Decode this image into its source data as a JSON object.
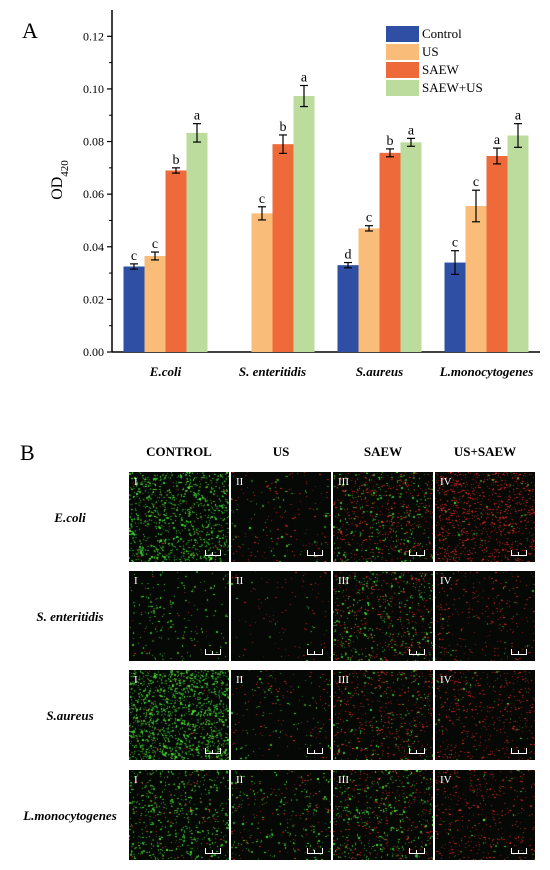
{
  "panel_a_letter": "A",
  "panel_b_letter": "B",
  "chart_data": {
    "type": "bar",
    "ylabel": "OD",
    "ylabel_subscript": "420",
    "ylim": [
      0,
      0.13
    ],
    "yticks": [
      "0.00",
      "0.02",
      "0.04",
      "0.06",
      "0.08",
      "0.10",
      "0.12"
    ],
    "categories": [
      "E.coli",
      "S. enteritidis",
      "S.aureus",
      "L.monocytogenes"
    ],
    "legend_position": "top-right",
    "grid": false,
    "series": [
      {
        "name": "Control",
        "color": "#2e4fa3",
        "values": [
          0.0325,
          null,
          0.033,
          0.034
        ],
        "errors": [
          0.001,
          null,
          0.001,
          0.0045
        ],
        "letters": [
          "c",
          "",
          "d",
          "c"
        ]
      },
      {
        "name": "US",
        "color": "#f9bd79",
        "values": [
          0.0365,
          0.0527,
          0.047,
          0.0555
        ],
        "errors": [
          0.0015,
          0.0025,
          0.001,
          0.006
        ],
        "letters": [
          "c",
          "c",
          "c",
          "c"
        ]
      },
      {
        "name": "SAEW",
        "color": "#ef6a3b",
        "values": [
          0.069,
          0.079,
          0.0757,
          0.0745
        ],
        "errors": [
          0.001,
          0.0035,
          0.0015,
          0.003
        ],
        "letters": [
          "b",
          "b",
          "b",
          "a"
        ]
      },
      {
        "name": "SAEW+US",
        "color": "#bcdc9e",
        "values": [
          0.0833,
          0.0973,
          0.0797,
          0.0823
        ],
        "errors": [
          0.0035,
          0.004,
          0.0015,
          0.0045
        ],
        "letters": [
          "a",
          "a",
          "a",
          "a"
        ]
      }
    ]
  },
  "panel_b": {
    "columns": [
      "CONTROL",
      "US",
      "SAEW",
      "US+SAEW"
    ],
    "rows": [
      {
        "label": "E.coli",
        "tiles": [
          "I",
          "II",
          "III",
          "IV"
        ]
      },
      {
        "label": "S. enteritidis",
        "tiles": [
          "I",
          "II",
          "III",
          "IV"
        ]
      },
      {
        "label": "S.aureus",
        "tiles": [
          "I",
          "II",
          "III",
          "IV"
        ]
      },
      {
        "label": "L.monocytogenes",
        "tiles": [
          "I",
          "II",
          "III",
          "IV"
        ]
      }
    ]
  }
}
